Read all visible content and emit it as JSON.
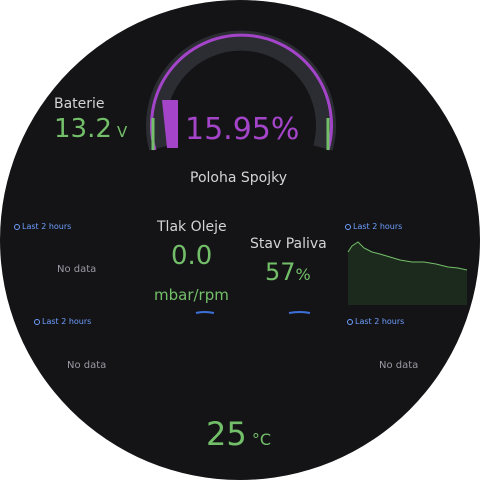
{
  "battery": {
    "label": "Baterie",
    "value": "13.2",
    "unit": "V"
  },
  "clutch": {
    "value": "15.95%",
    "label": "Poloha Spojky",
    "fraction": 0.1595
  },
  "oil": {
    "label": "Tlak Oleje",
    "value": "0.0",
    "unit": "mbar/rpm"
  },
  "fuel": {
    "label": "Stav Paliva",
    "value": "57",
    "unit": "%"
  },
  "temperature": {
    "value": "25",
    "unit": "°C"
  },
  "panels": {
    "top_left": {
      "time": "Last 2 hours",
      "status": "No data"
    },
    "top_right": {
      "time": "Last 2 hours"
    },
    "bottom_left": {
      "time": "Last 2 hours",
      "status": "No data"
    },
    "bottom_right": {
      "time": "Last 2 hours",
      "status": "No data"
    }
  },
  "colors": {
    "green": "#73bf69",
    "purple": "#a445c9",
    "track": "#2b2d33",
    "background": "#141417"
  }
}
